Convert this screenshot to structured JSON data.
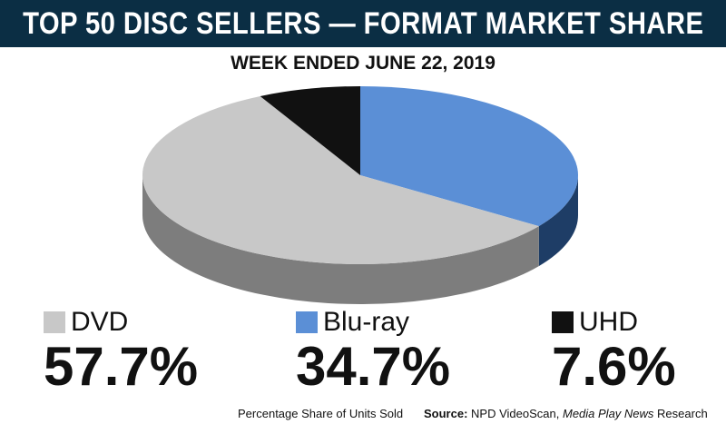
{
  "header": {
    "title": "TOP 50 DISC SELLERS — FORMAT MARKET SHARE",
    "subtitle": "WEEK ENDED JUNE 22, 2019"
  },
  "chart_data": {
    "type": "pie",
    "title": "TOP 50 DISC SELLERS — FORMAT MARKET SHARE",
    "subtitle": "WEEK ENDED JUNE 22, 2019",
    "categories": [
      "DVD",
      "Blu-ray",
      "UHD"
    ],
    "values": [
      57.7,
      34.7,
      7.6
    ],
    "value_labels": [
      "57.7%",
      "34.7%",
      "7.6%"
    ],
    "colors": [
      "#c8c8c8",
      "#5b8fd6",
      "#111111"
    ],
    "side_colors": [
      "#7d7d7d",
      "#1e3d66",
      "#000000"
    ],
    "legend_position": "bottom",
    "style": "3d"
  },
  "footer": {
    "note": "Percentage Share of Units Sold",
    "source_label": "Source:",
    "source_text": "NPD VideoScan,",
    "source_italic": "Media Play News",
    "source_suffix": "Research"
  }
}
